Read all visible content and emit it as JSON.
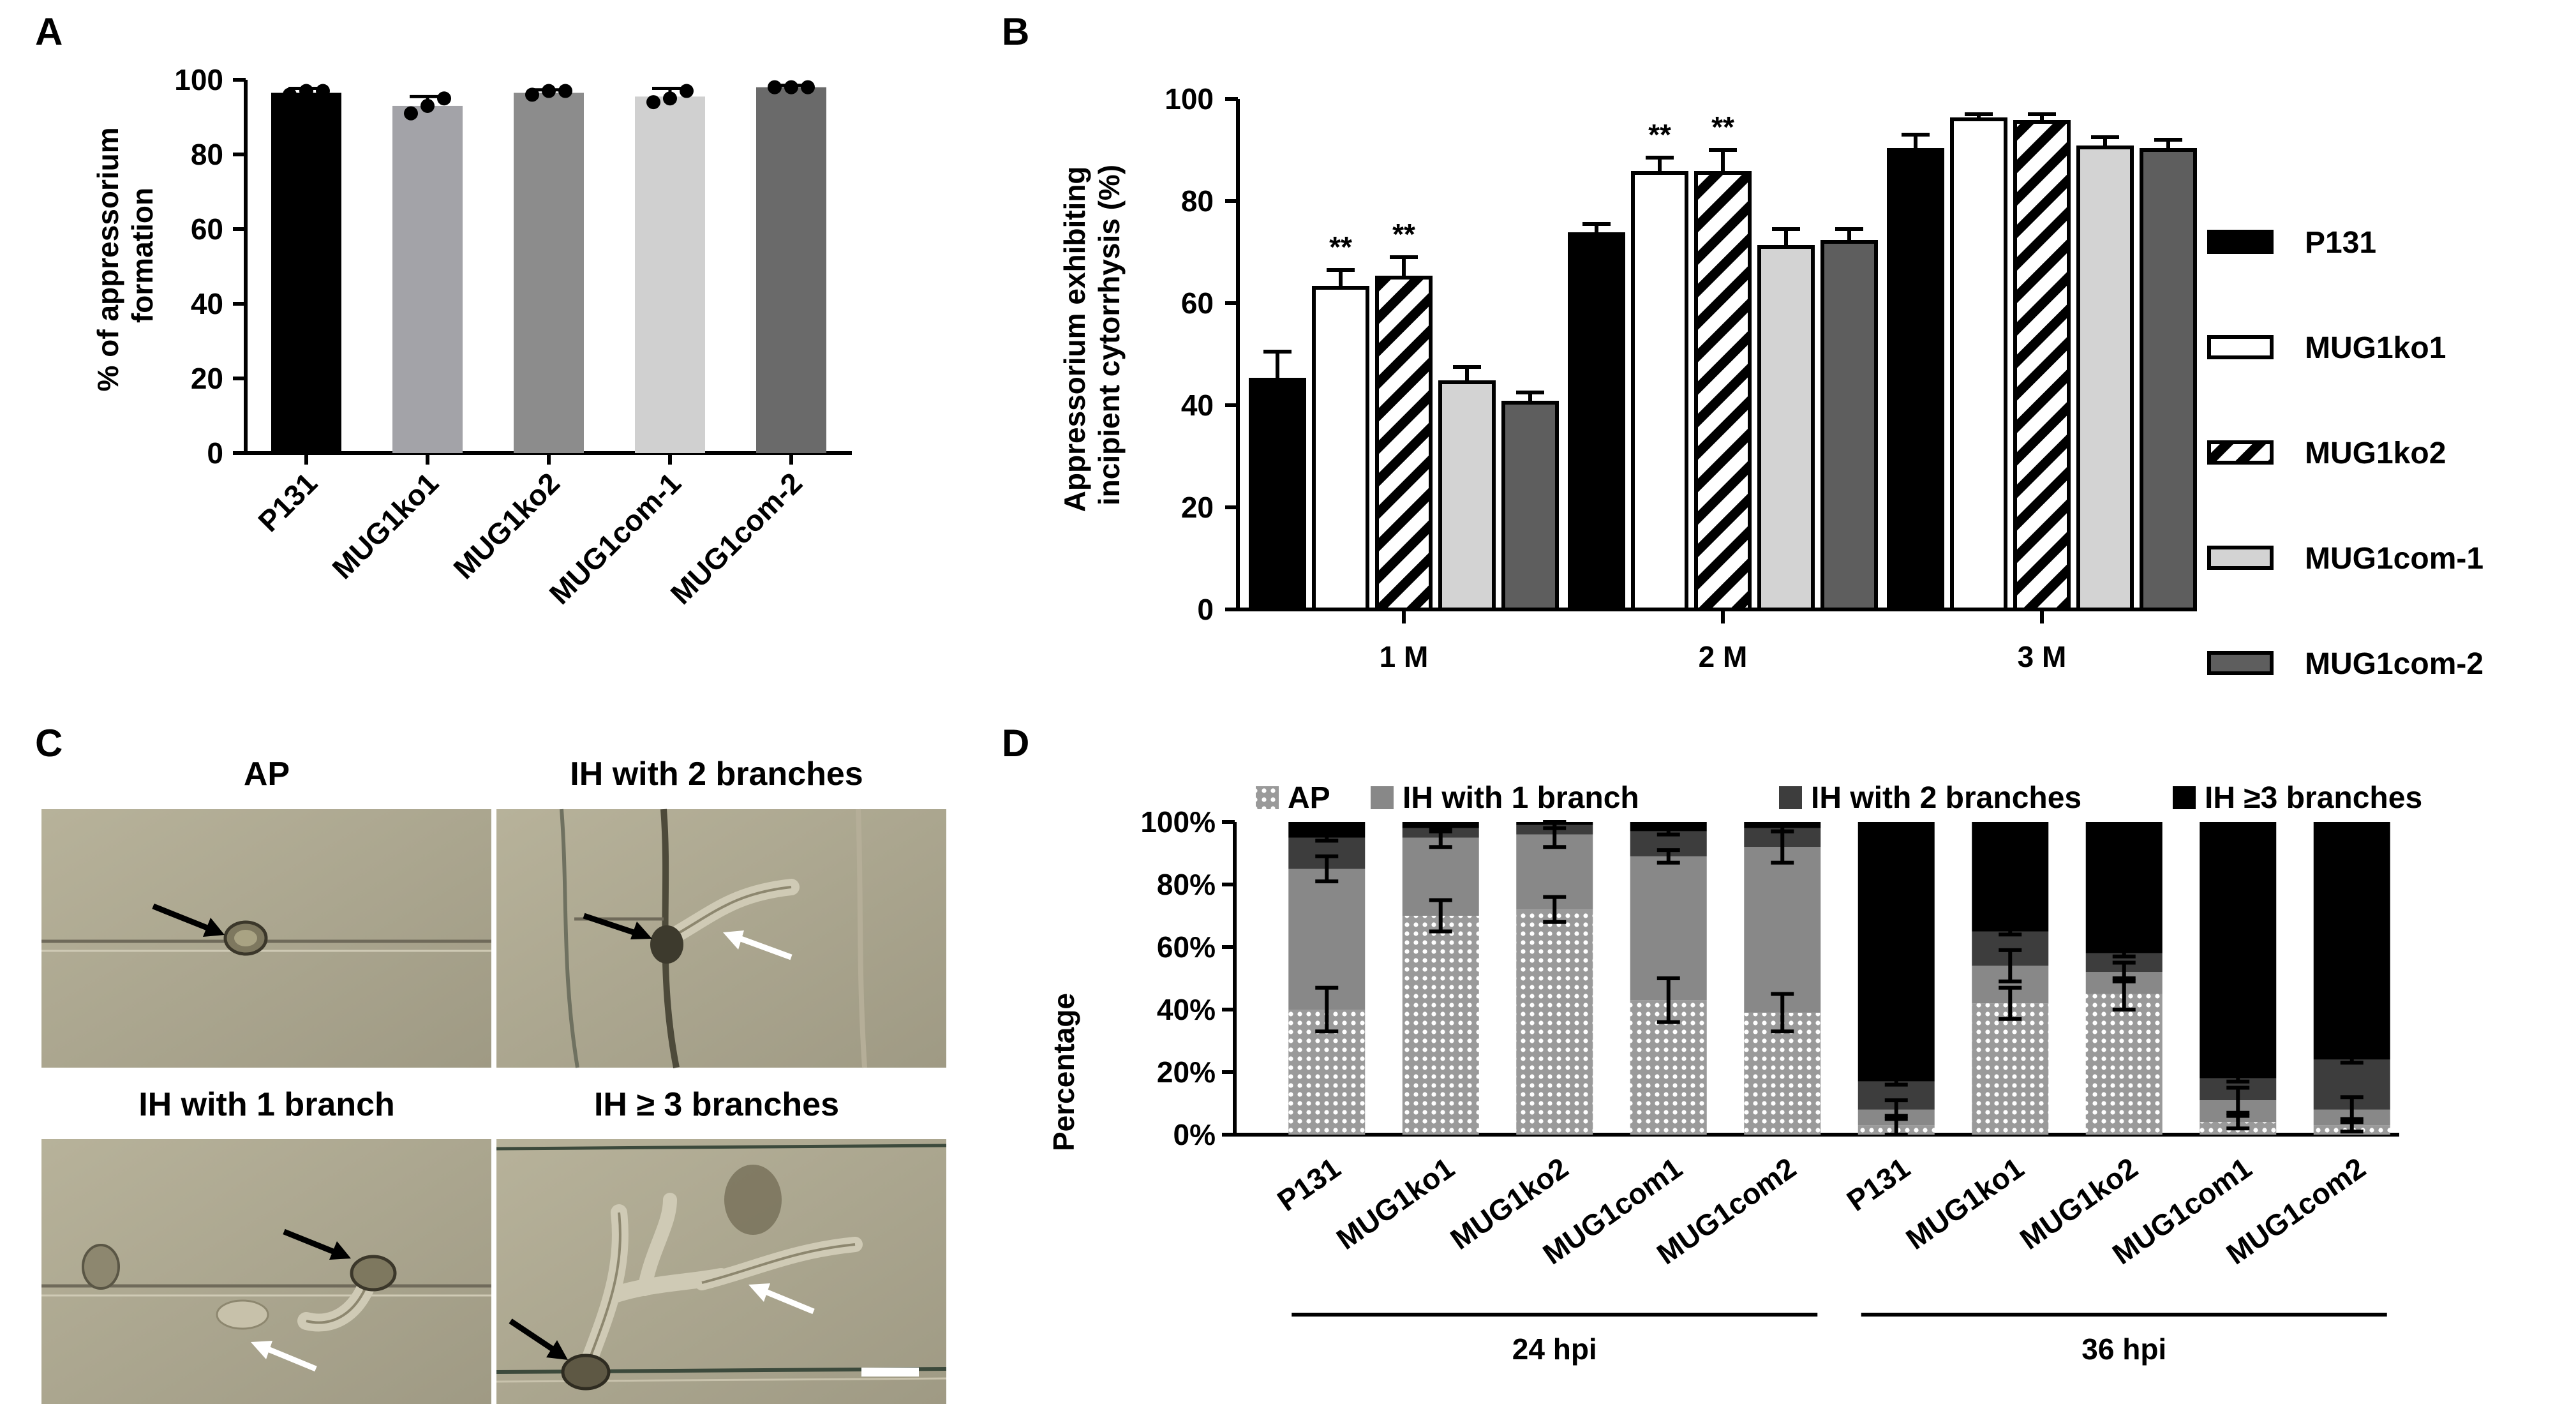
{
  "panel_labels": [
    "A",
    "B",
    "C",
    "D"
  ],
  "colors": {
    "P131": "#000000",
    "MUG1ko1": "#ffffff",
    "MUG1ko2": "hatch",
    "MUG1com-1": "#d3d3d3",
    "MUG1com-2": "#5e5e5e",
    "A_bars": [
      "#000000",
      "#a3a3a8",
      "#8c8c8c",
      "#d0d0d0",
      "#6a6a6a"
    ],
    "D_stack": [
      "dots",
      "#888888",
      "#3d3d3d",
      "#000000"
    ]
  },
  "chart_data": [
    {
      "id": "A",
      "type": "bar",
      "ylabel_lines": [
        "% of appressorium",
        "formation"
      ],
      "ylim": [
        0,
        100
      ],
      "yticks": [
        0,
        20,
        40,
        60,
        80,
        100
      ],
      "categories": [
        "P131",
        "MUG1ko1",
        "MUG1ko2",
        "MUG1com-1",
        "MUG1com-2"
      ],
      "values": [
        96.5,
        93,
        96.5,
        95.5,
        98
      ],
      "errors": [
        1.2,
        2.5,
        0.8,
        2.2,
        0.5
      ],
      "points": [
        [
          96,
          97,
          97
        ],
        [
          91,
          93,
          95
        ],
        [
          96,
          97,
          97
        ],
        [
          94,
          95,
          97
        ],
        [
          98,
          98,
          98
        ]
      ]
    },
    {
      "id": "B",
      "type": "bar",
      "ylabel_lines": [
        "Appressorium exhibiting",
        "incipient cytorrhysis (%)"
      ],
      "ylim": [
        0,
        100
      ],
      "yticks": [
        0,
        20,
        40,
        60,
        80,
        100
      ],
      "categories": [
        "1 M",
        "2 M",
        "3 M"
      ],
      "series": [
        {
          "name": "P131",
          "values": [
            45,
            73.5,
            90
          ],
          "errors": [
            5.5,
            2,
            3
          ]
        },
        {
          "name": "MUG1ko1",
          "values": [
            63,
            85.5,
            96
          ],
          "errors": [
            3.5,
            3,
            1
          ]
        },
        {
          "name": "MUG1ko2",
          "values": [
            65,
            85.5,
            95.5
          ],
          "errors": [
            4,
            4.5,
            1.5
          ]
        },
        {
          "name": "MUG1com-1",
          "values": [
            44.5,
            71,
            90.5
          ],
          "errors": [
            3,
            3.5,
            2
          ]
        },
        {
          "name": "MUG1com-2",
          "values": [
            40.5,
            72,
            90
          ],
          "errors": [
            2,
            2.5,
            2
          ]
        }
      ],
      "annotations": [
        {
          "text": "**",
          "category": "1 M",
          "series": "MUG1ko1"
        },
        {
          "text": "**",
          "category": "1 M",
          "series": "MUG1ko2"
        },
        {
          "text": "**",
          "category": "2 M",
          "series": "MUG1ko1"
        },
        {
          "text": "**",
          "category": "2 M",
          "series": "MUG1ko2"
        }
      ],
      "legend": [
        "P131",
        "MUG1ko1",
        "MUG1ko2",
        "MUG1com-1",
        "MUG1com-2"
      ],
      "legend_position": "right"
    },
    {
      "id": "D",
      "type": "bar",
      "stacked": true,
      "ylabel": "Percentage",
      "ylim": [
        0,
        100
      ],
      "ytick_labels": [
        "0%",
        "20%",
        "40%",
        "60%",
        "80%",
        "100%"
      ],
      "categories": [
        "P131",
        "MUG1ko1",
        "MUG1ko2",
        "MUG1com1",
        "MUG1com2",
        "P131",
        "MUG1ko1",
        "MUG1ko2",
        "MUG1com1",
        "MUG1com2"
      ],
      "groups": [
        {
          "label": "24 hpi",
          "from": 0,
          "to": 4
        },
        {
          "label": "36 hpi",
          "from": 5,
          "to": 9
        }
      ],
      "series": [
        {
          "name": "AP",
          "values": [
            40,
            70,
            72,
            43,
            39,
            3,
            42,
            45,
            4,
            3
          ],
          "errors": [
            7,
            5,
            4,
            7,
            6,
            3,
            5,
            5,
            2,
            2
          ]
        },
        {
          "name": "IH with 1 branch",
          "values": [
            45,
            25,
            24,
            46,
            53,
            5,
            12,
            7,
            7,
            5
          ],
          "errors": [
            4,
            3,
            4,
            2,
            5,
            3,
            5,
            3,
            4,
            4
          ]
        },
        {
          "name": "IH with 2 branches",
          "values": [
            10,
            3,
            3,
            8,
            6,
            9,
            11,
            6,
            7,
            16
          ],
          "errors": [
            1,
            1,
            1,
            1,
            1,
            1,
            1,
            1,
            1,
            1
          ]
        },
        {
          "name": "IH ≥3 branches",
          "values": [
            5,
            2,
            1,
            3,
            2,
            83,
            35,
            42,
            82,
            76
          ]
        }
      ],
      "legend": [
        "AP",
        "IH with 1 branch",
        "IH with 2 branches",
        "IH ≥3 branches"
      ],
      "legend_position": "top"
    }
  ],
  "panel_c": {
    "titles": [
      "AP",
      "IH with 2 branches",
      "IH with 1 branch",
      "IH ≥ 3 branches"
    ]
  }
}
